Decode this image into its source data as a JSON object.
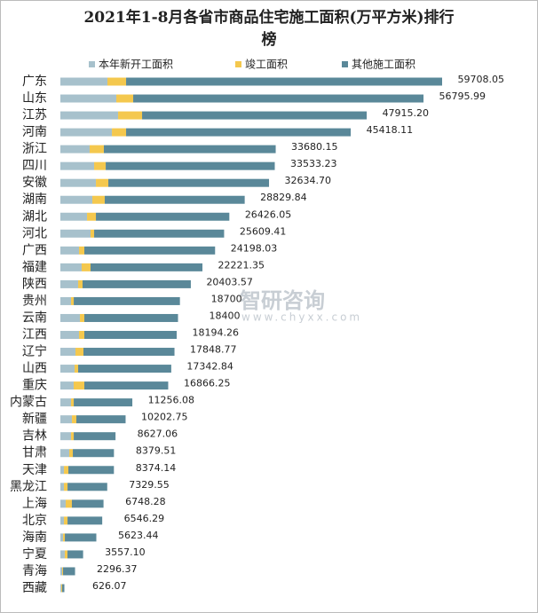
{
  "chart_data": {
    "type": "stacked-bar-horizontal",
    "title": "2021年1-8月各省市商品住宅施工面积(万平方米)排行榜",
    "watermark": [
      "智研咨询",
      "www.chyxx.com"
    ],
    "categories": [
      "广东",
      "山东",
      "江苏",
      "河南",
      "浙江",
      "四川",
      "安徽",
      "湖南",
      "湖北",
      "河北",
      "广西",
      "福建",
      "陕西",
      "贵州",
      "云南",
      "江西",
      "辽宁",
      "山西",
      "重庆",
      "内蒙古",
      "新疆",
      "吉林",
      "甘肃",
      "天津",
      "黑龙江",
      "上海",
      "北京",
      "海南",
      "宁夏",
      "青海",
      "西藏"
    ],
    "series": [
      {
        "name": "本年新开工面积",
        "color": "#a7c1cc",
        "values": [
          7360,
          8750,
          9030,
          8060,
          4580,
          5280,
          5560,
          5000,
          4170,
          4720,
          2920,
          3330,
          2780,
          1670,
          3060,
          2920,
          2360,
          2220,
          2080,
          1670,
          1810,
          1670,
          1390,
          560,
          560,
          830,
          560,
          420,
          690,
          280,
          140
        ]
      },
      {
        "name": "竣工面积",
        "color": "#f4c84e",
        "values": [
          2920,
          2640,
          3750,
          2220,
          2220,
          1810,
          1940,
          1940,
          1390,
          560,
          830,
          1390,
          690,
          420,
          690,
          830,
          1250,
          560,
          1670,
          420,
          690,
          420,
          560,
          690,
          560,
          970,
          560,
          280,
          420,
          140,
          140
        ]
      },
      {
        "name": "其他施工面积",
        "color": "#5a8899",
        "values": [
          49428.05,
          45405.99,
          35135.2,
          35138.11,
          26880.15,
          26443.23,
          25134.7,
          21889.84,
          20866.05,
          20329.41,
          20448.03,
          17501.35,
          16933.57,
          16610,
          14650,
          14444.26,
          14238.77,
          14562.84,
          13116.25,
          9166.08,
          7702.75,
          6537.06,
          6429.51,
          7124.14,
          6209.55,
          4948.28,
          5426.29,
          4923.44,
          2447.1,
          1876.37,
          346.07
        ]
      }
    ],
    "totals": [
      59708.05,
      56795.99,
      47915.2,
      45418.11,
      33680.15,
      33533.23,
      32634.7,
      28829.84,
      26426.05,
      25609.41,
      24198.03,
      22221.35,
      20403.57,
      18700,
      18400,
      18194.26,
      17848.77,
      17342.84,
      16866.25,
      11256.08,
      10202.75,
      8627.06,
      8379.51,
      8374.14,
      7329.55,
      6748.28,
      6546.29,
      5623.44,
      3557.1,
      2296.37,
      626.07
    ],
    "total_labels": [
      "59708.05",
      "56795.99",
      "47915.20",
      "45418.11",
      "33680.15",
      "33533.23",
      "32634.70",
      "28829.84",
      "26426.05",
      "25609.41",
      "24198.03",
      "22221.35",
      "20403.57",
      "18700",
      "18400",
      "18194.26",
      "17848.77",
      "17342.84",
      "16866.25",
      "11256.08",
      "10202.75",
      "8627.06",
      "8379.51",
      "8374.14",
      "7329.55",
      "6748.28",
      "6546.29",
      "5623.44",
      "3557.10",
      "2296.37",
      "626.07"
    ]
  }
}
